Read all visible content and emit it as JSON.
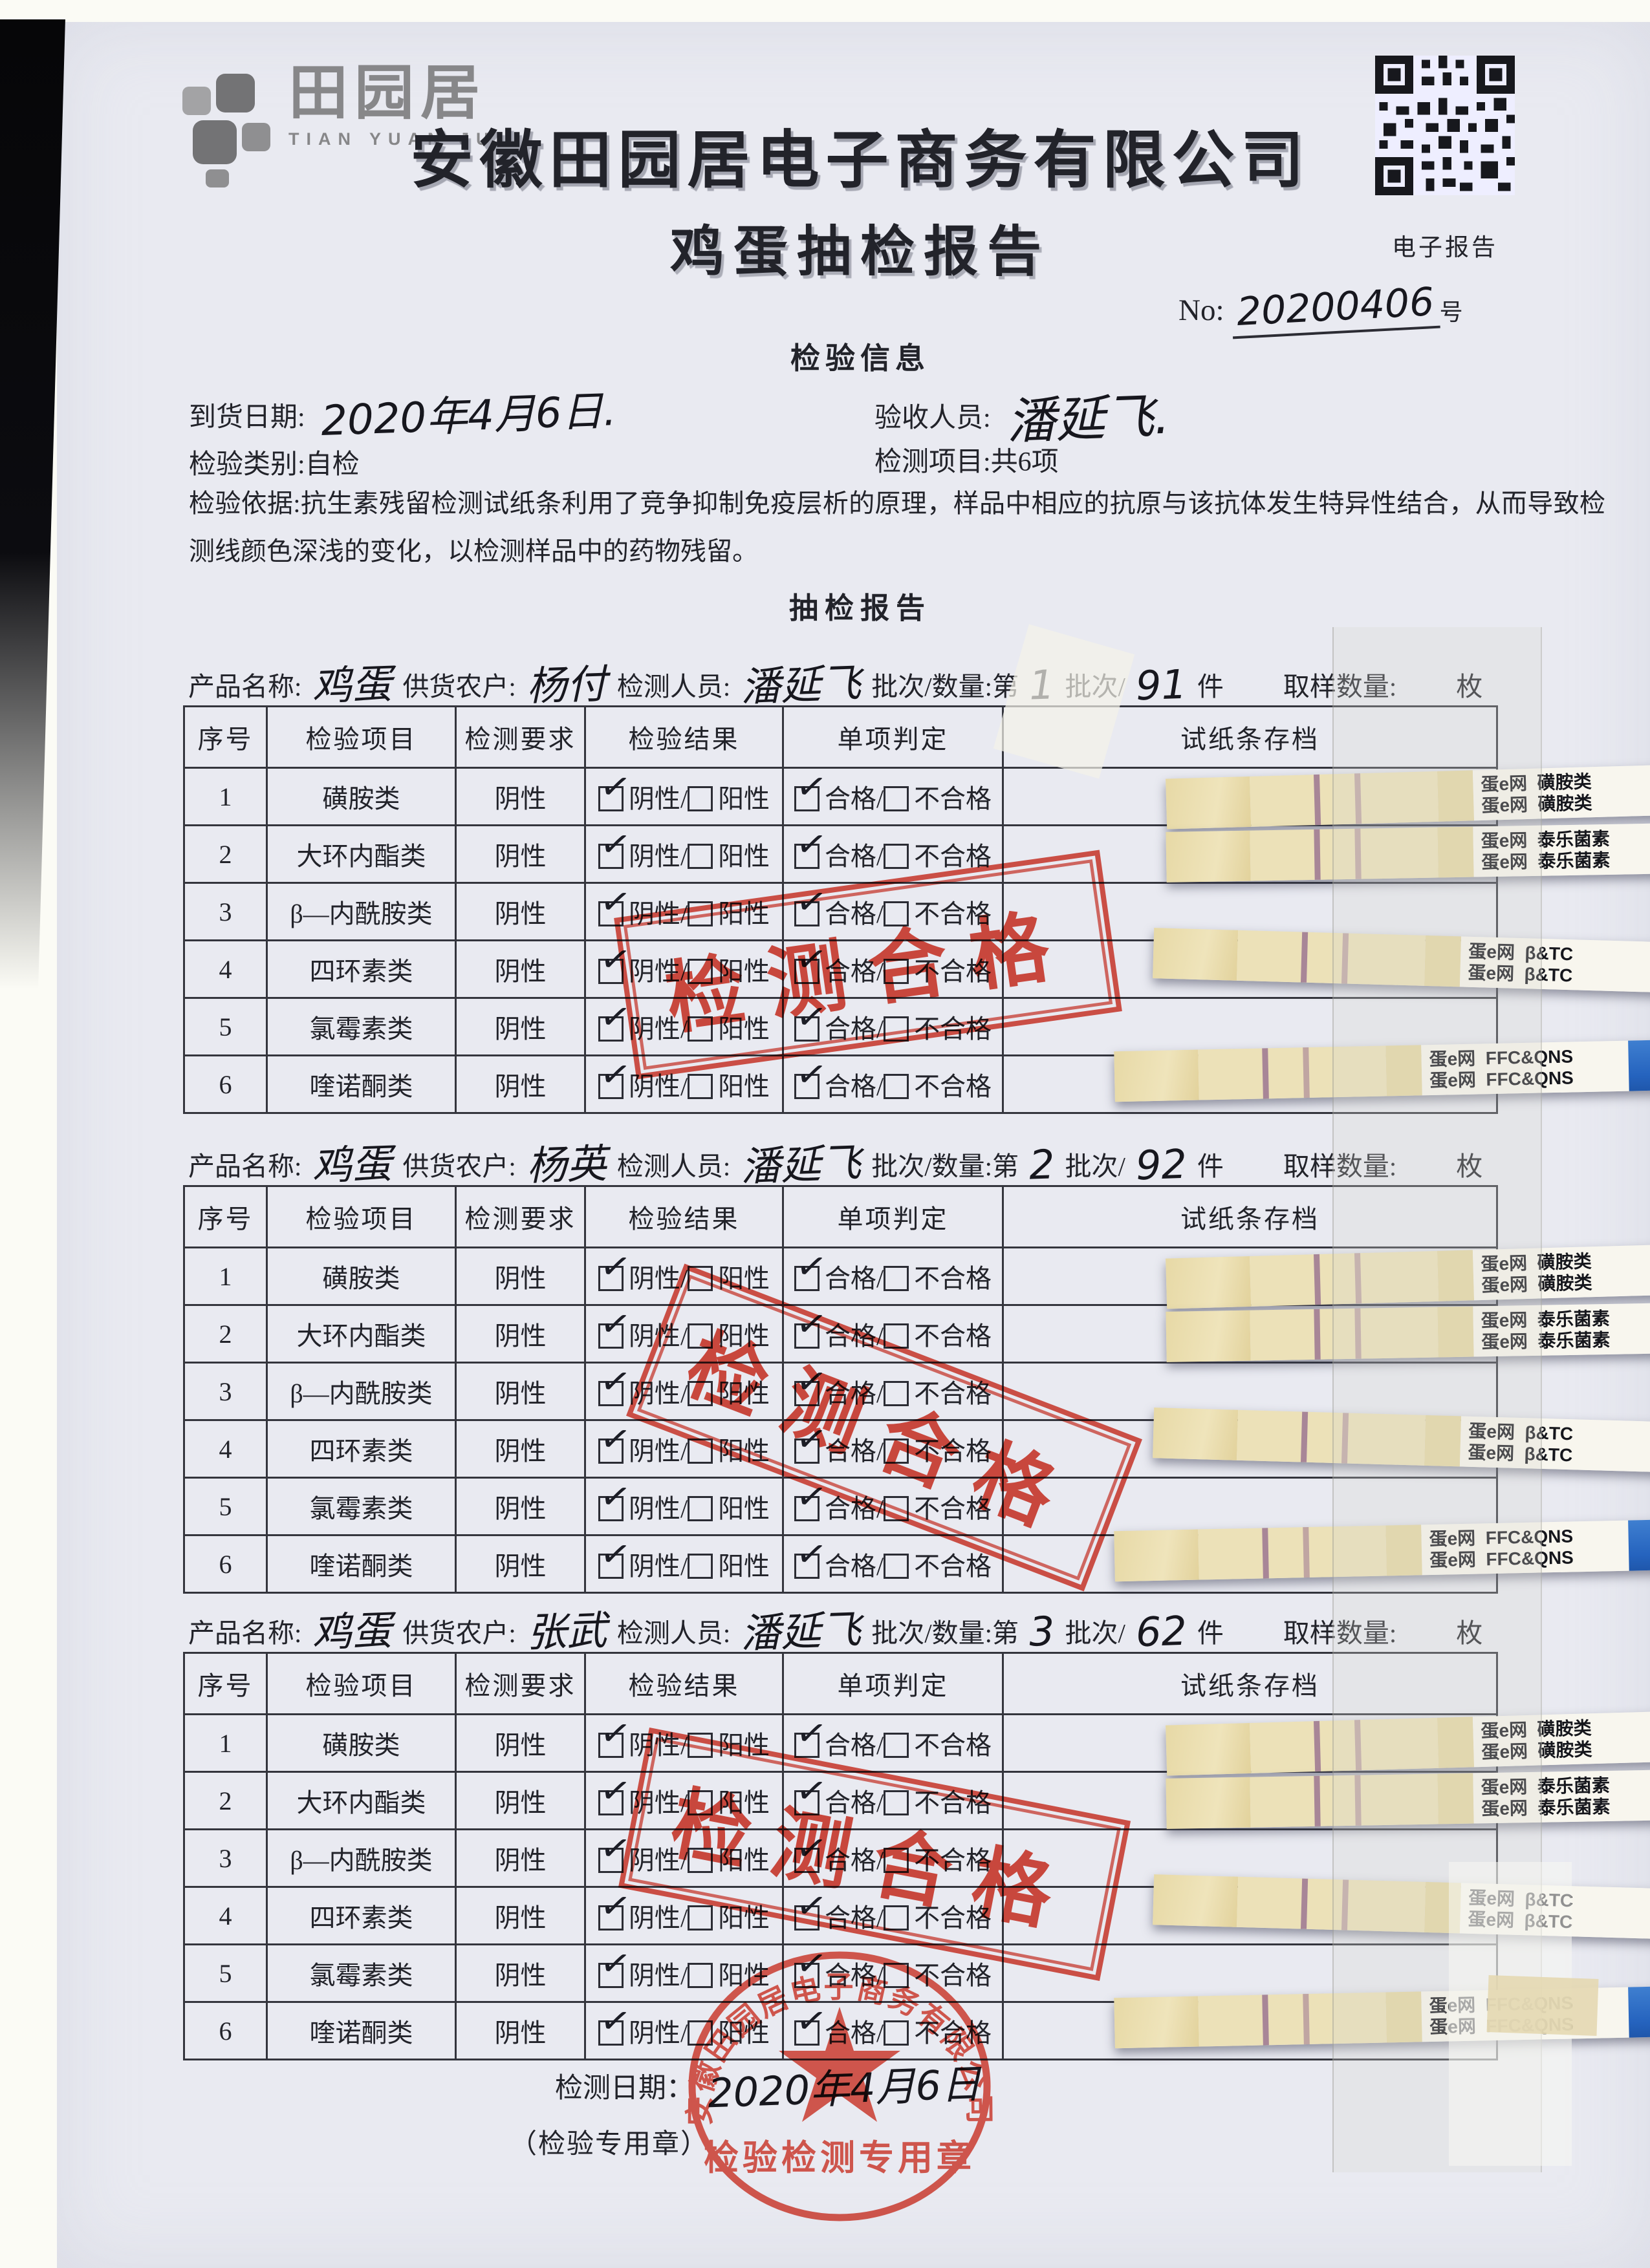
{
  "header": {
    "logo_text": "田园居",
    "logo_sub": "TIAN YUAN JU",
    "company": "安徽田园居电子商务有限公司",
    "report_title": "鸡蛋抽检报告",
    "qr_caption": "电子报告",
    "no_label": "No:",
    "no_value": "20200406",
    "no_suffix": "号"
  },
  "info": {
    "section_title": "检验信息",
    "arrival_label": "到货日期:",
    "arrival_value": "2020年4月6日.",
    "receiver_label": "验收人员:",
    "receiver_value": "潘延飞.",
    "category_label": "检验类别:",
    "category_value": "自检",
    "items_label": "检测项目:",
    "items_value": "共6项",
    "basis": "检验依据:抗生素残留检测试纸条利用了竞争抑制免疫层析的原理，样品中相应的抗原与该抗体发生特异性结合，从而导致检测线颜色深浅的变化，以检测样品中的药物残留。"
  },
  "report": {
    "section_title": "抽检报告",
    "pass_stamp": "检测合格"
  },
  "table": {
    "headers": [
      "序号",
      "检验项目",
      "检测要求",
      "检验结果",
      "单项判定",
      "试纸条存档"
    ],
    "opt_neg": "阴性",
    "opt_pos": "阳性",
    "opt_pass": "合格",
    "opt_fail": "不合格",
    "slash": "/",
    "rows": [
      {
        "seq": "1",
        "name": "磺胺类",
        "req": "阴性",
        "neg_checked": true,
        "pass_checked": true
      },
      {
        "seq": "2",
        "name": "大环内酯类",
        "req": "阴性",
        "neg_checked": true,
        "pass_checked": true
      },
      {
        "seq": "3",
        "name": "β—内酰胺类",
        "req": "阴性",
        "neg_checked": true,
        "pass_checked": true
      },
      {
        "seq": "4",
        "name": "四环素类",
        "req": "阴性",
        "neg_checked": true,
        "pass_checked": true
      },
      {
        "seq": "5",
        "name": "氯霉素类",
        "req": "阴性",
        "neg_checked": true,
        "pass_checked": true
      },
      {
        "seq": "6",
        "name": "喹诺酮类",
        "req": "阴性",
        "neg_checked": true,
        "pass_checked": true
      }
    ],
    "strips": [
      {
        "brand": "蛋e网",
        "name": "磺胺类"
      },
      {
        "brand": "蛋e网",
        "name": "泰乐菌素"
      },
      {
        "brand": "蛋e网",
        "name": "β&TC"
      },
      {
        "brand": "蛋e网",
        "name": "FFC&QNS"
      }
    ]
  },
  "batches": [
    {
      "product_label": "产品名称:",
      "product_value": "鸡蛋",
      "supplier_label": "供货农户:",
      "supplier_value": "杨付",
      "inspector_label": "检测人员:",
      "inspector_value": "潘延飞",
      "batch_label": "批次/数量:第",
      "batch_no": "1",
      "batch_mid": "批次/",
      "quantity": "91",
      "quantity_unit": "件",
      "sample_label": "取样数量:",
      "sample_unit": "枚"
    },
    {
      "product_label": "产品名称:",
      "product_value": "鸡蛋",
      "supplier_label": "供货农户:",
      "supplier_value": "杨英",
      "inspector_label": "检测人员:",
      "inspector_value": "潘延飞",
      "batch_label": "批次/数量:第",
      "batch_no": "2",
      "batch_mid": "批次/",
      "quantity": "92",
      "quantity_unit": "件",
      "sample_label": "取样数量:",
      "sample_unit": "枚"
    },
    {
      "product_label": "产品名称:",
      "product_value": "鸡蛋",
      "supplier_label": "供货农户:",
      "supplier_value": "张武",
      "inspector_label": "检测人员:",
      "inspector_value": "潘延飞",
      "batch_label": "批次/数量:第",
      "batch_no": "3",
      "batch_mid": "批次/",
      "quantity": "62",
      "quantity_unit": "件",
      "sample_label": "取样数量:",
      "sample_unit": "枚"
    }
  ],
  "footer": {
    "date_label": "检测日期：",
    "date_value": "2020年4月6日",
    "chop_note": "（检验专用章）",
    "seal_company": "安徽田园居电子商务有限公司",
    "seal_title": "检验检测专用章"
  },
  "colors": {
    "stamp_red": "#d83e30",
    "strip_blue": "#2563be",
    "paper": "#e9eaf1",
    "ink": "#22232a"
  }
}
